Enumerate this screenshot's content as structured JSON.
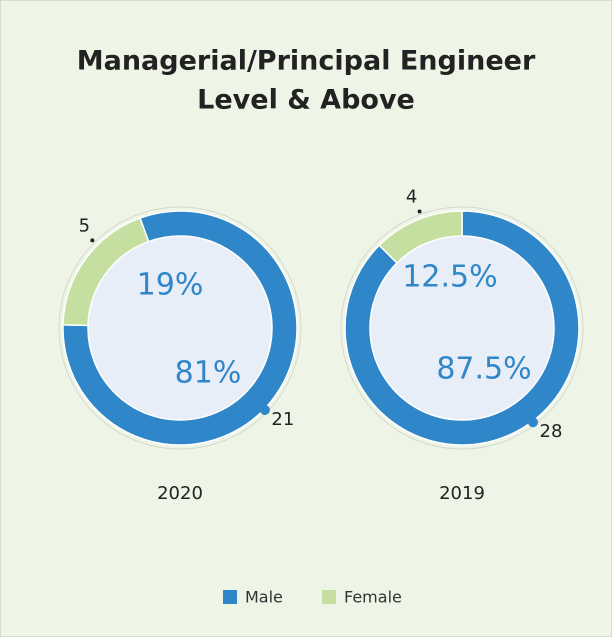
{
  "title": [
    "Managerial/Principal Engineer",
    "Level & Above"
  ],
  "legend": {
    "position": "bottom",
    "items": [
      {
        "name": "Male",
        "color": "#2f86c8"
      },
      {
        "name": "Female",
        "color": "#c4df9f"
      }
    ]
  },
  "chart_data": [
    {
      "type": "donut",
      "label": "2020",
      "start_angle": -20,
      "values": [
        81,
        19
      ],
      "value_labels": [
        "81%",
        "19%"
      ],
      "counts": [
        21,
        5
      ]
    },
    {
      "type": "donut",
      "label": "2019",
      "start_angle": 0,
      "values": [
        87.5,
        12.5
      ],
      "value_labels": [
        "87.5%",
        "12.5%"
      ],
      "counts": [
        28,
        4
      ]
    }
  ]
}
